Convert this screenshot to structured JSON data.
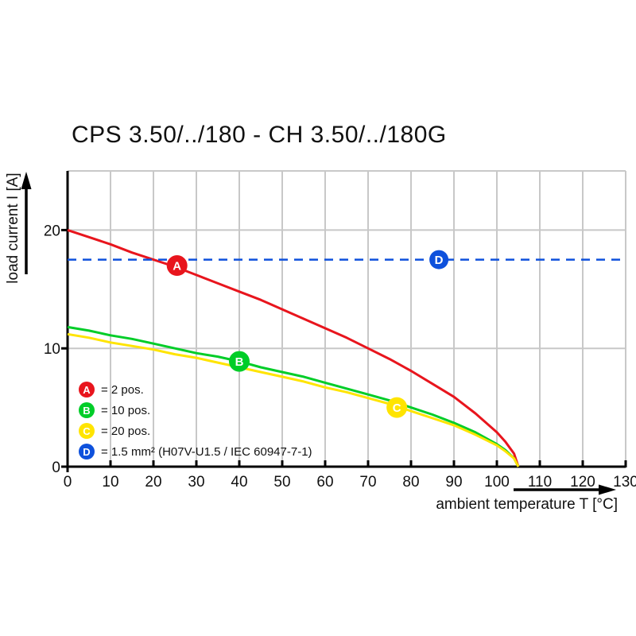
{
  "title": "CPS 3.50/../180 - CH 3.50/../180G",
  "colors": {
    "axis": "#000000",
    "grid": "#c8c8c8",
    "text": "#111111",
    "series_a_red": "#e8151d",
    "series_b_green": "#00cd28",
    "series_c_yellow": "#ffe400",
    "series_d_blue": "#0e51dc"
  },
  "chart_data": {
    "type": "line",
    "title": "CPS 3.50/../180 - CH 3.50/../180G",
    "xlabel": "ambient temperature T [°C]",
    "ylabel": "load current I [A]",
    "xlim": [
      0,
      130
    ],
    "ylim": [
      0,
      25
    ],
    "x_ticks": [
      0,
      10,
      20,
      30,
      40,
      50,
      60,
      70,
      80,
      90,
      100,
      110,
      120,
      130
    ],
    "y_ticks": [
      0,
      10,
      20
    ],
    "x_gridlines": [
      10,
      20,
      30,
      40,
      50,
      60,
      70,
      80,
      90,
      100,
      110,
      120,
      130
    ],
    "y_gridlines": [
      10,
      20,
      25
    ],
    "grid": true,
    "legend_position": "bottom-left",
    "series": [
      {
        "name": "A",
        "label": "= 2 pos.",
        "color": "#e8151d",
        "style": "solid",
        "marker": {
          "t": 25.5,
          "i": 17.0,
          "letter": "A"
        },
        "points": [
          [
            0,
            20
          ],
          [
            5,
            19.4
          ],
          [
            10,
            18.8
          ],
          [
            15,
            18.1
          ],
          [
            20,
            17.5
          ],
          [
            25,
            16.9
          ],
          [
            30,
            16.2
          ],
          [
            35,
            15.5
          ],
          [
            40,
            14.8
          ],
          [
            45,
            14.1
          ],
          [
            50,
            13.3
          ],
          [
            55,
            12.5
          ],
          [
            60,
            11.7
          ],
          [
            65,
            10.9
          ],
          [
            70,
            10.0
          ],
          [
            75,
            9.1
          ],
          [
            80,
            8.1
          ],
          [
            85,
            7.0
          ],
          [
            90,
            5.9
          ],
          [
            95,
            4.5
          ],
          [
            100,
            2.9
          ],
          [
            102,
            2.1
          ],
          [
            104,
            1.1
          ],
          [
            105,
            0
          ]
        ]
      },
      {
        "name": "B",
        "label": "= 10 pos.",
        "color": "#00cd28",
        "style": "solid",
        "marker": {
          "t": 40,
          "i": 8.9,
          "letter": "B"
        },
        "points": [
          [
            0,
            11.8
          ],
          [
            5,
            11.5
          ],
          [
            10,
            11.1
          ],
          [
            15,
            10.8
          ],
          [
            20,
            10.4
          ],
          [
            25,
            10.0
          ],
          [
            30,
            9.6
          ],
          [
            35,
            9.3
          ],
          [
            40,
            8.9
          ],
          [
            45,
            8.4
          ],
          [
            50,
            8.0
          ],
          [
            55,
            7.6
          ],
          [
            60,
            7.1
          ],
          [
            65,
            6.6
          ],
          [
            70,
            6.1
          ],
          [
            75,
            5.6
          ],
          [
            80,
            5.0
          ],
          [
            85,
            4.4
          ],
          [
            90,
            3.7
          ],
          [
            95,
            2.9
          ],
          [
            100,
            1.9
          ],
          [
            102,
            1.4
          ],
          [
            104,
            0.7
          ],
          [
            105,
            0
          ]
        ]
      },
      {
        "name": "C",
        "label": "= 20 pos.",
        "color": "#ffe400",
        "style": "solid",
        "marker": {
          "t": 76.7,
          "i": 5.0,
          "letter": "C"
        },
        "points": [
          [
            0,
            11.2
          ],
          [
            5,
            10.9
          ],
          [
            10,
            10.5
          ],
          [
            15,
            10.2
          ],
          [
            20,
            9.9
          ],
          [
            25,
            9.5
          ],
          [
            30,
            9.2
          ],
          [
            35,
            8.8
          ],
          [
            40,
            8.4
          ],
          [
            45,
            8.0
          ],
          [
            50,
            7.6
          ],
          [
            55,
            7.2
          ],
          [
            60,
            6.7
          ],
          [
            65,
            6.3
          ],
          [
            70,
            5.8
          ],
          [
            75,
            5.3
          ],
          [
            80,
            4.7
          ],
          [
            85,
            4.1
          ],
          [
            90,
            3.5
          ],
          [
            95,
            2.7
          ],
          [
            100,
            1.8
          ],
          [
            102,
            1.3
          ],
          [
            104,
            0.7
          ],
          [
            105,
            0
          ]
        ]
      },
      {
        "name": "D",
        "label": "= 1.5 mm² (H07V-U1.5 / IEC 60947-7-1)",
        "color": "#0e51dc",
        "style": "dashed",
        "marker": {
          "t": 86.5,
          "i": 17.5,
          "letter": "D"
        },
        "points": [
          [
            0,
            17.5
          ],
          [
            130,
            17.5
          ]
        ]
      }
    ]
  }
}
